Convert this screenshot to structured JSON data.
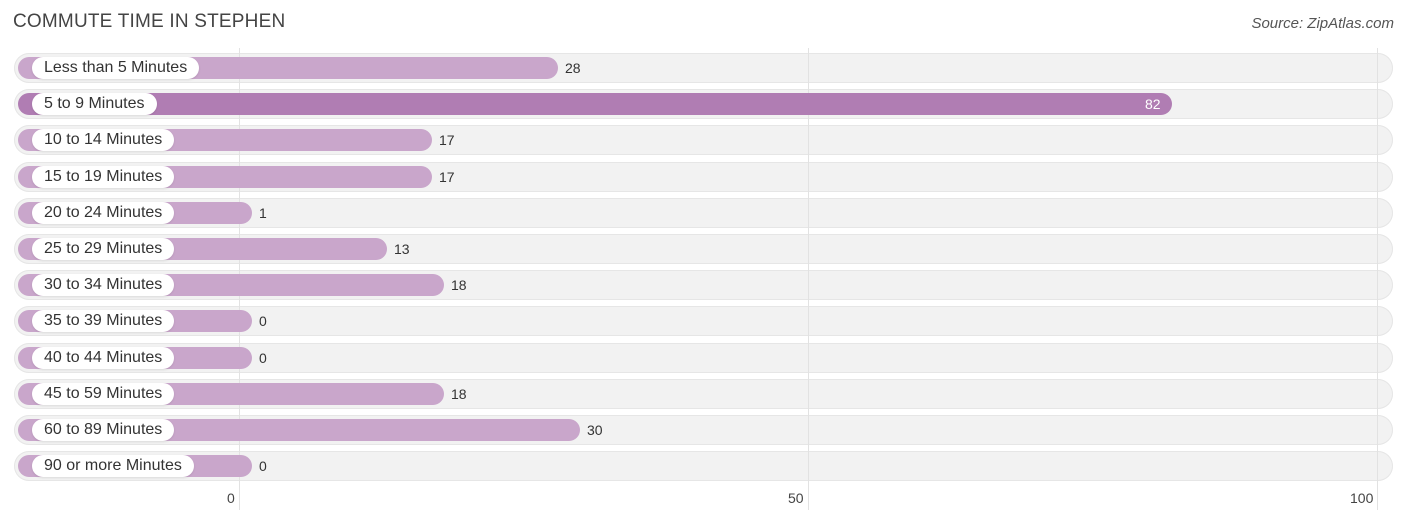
{
  "title": "COMMUTE TIME IN STEPHEN",
  "source": "Source: ZipAtlas.com",
  "colors": {
    "bar": "#c9a6cb",
    "bar_highlight": "#b07db3",
    "row_bg": "#f2f2f2"
  },
  "chart_data": {
    "type": "bar",
    "orientation": "horizontal",
    "categories": [
      "Less than 5 Minutes",
      "5 to 9 Minutes",
      "10 to 14 Minutes",
      "15 to 19 Minutes",
      "20 to 24 Minutes",
      "25 to 29 Minutes",
      "30 to 34 Minutes",
      "35 to 39 Minutes",
      "40 to 44 Minutes",
      "45 to 59 Minutes",
      "60 to 89 Minutes",
      "90 or more Minutes"
    ],
    "values": [
      28,
      82,
      17,
      17,
      1,
      13,
      18,
      0,
      0,
      18,
      30,
      0
    ],
    "value_labels": [
      "28",
      "82",
      "17",
      "17",
      "1",
      "13",
      "18",
      "0",
      "0",
      "18",
      "30",
      "0"
    ],
    "highlight_index": 1,
    "xlim": [
      0,
      100
    ],
    "xticks": [
      0,
      50,
      100
    ],
    "xtick_labels": [
      "0",
      "50",
      "100"
    ],
    "grid": true,
    "legend": "none"
  }
}
